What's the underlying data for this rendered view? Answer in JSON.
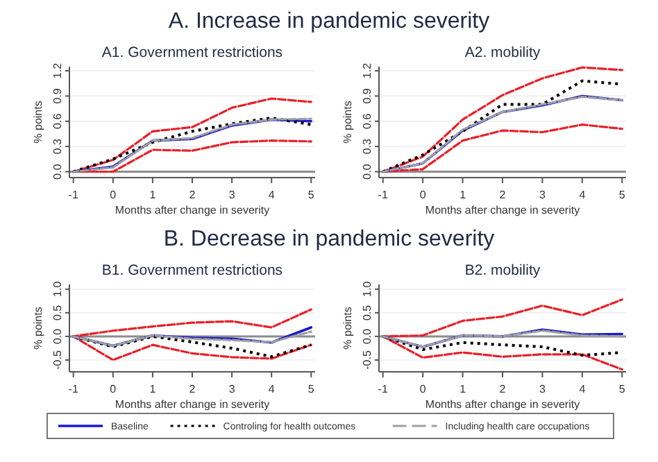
{
  "chart_data": [
    {
      "type": "line",
      "subtitle": "A1. Government restrictions",
      "xlabel": "Months after change in severity",
      "ylabel": "% points",
      "annotations": [
        "A. Increase in pandemic severity"
      ],
      "x": [
        -1,
        0,
        1,
        2,
        3,
        4,
        5
      ],
      "xlim": [
        -1.1,
        5.1
      ],
      "xticks": [
        -1,
        0,
        1,
        2,
        3,
        4,
        5
      ],
      "ylim": [
        -0.07,
        1.25
      ],
      "yticks": [
        {
          "value": 0,
          "label": "0.0"
        },
        {
          "value": 0.3,
          "label": "0.3"
        },
        {
          "value": 0.6,
          "label": "0.6"
        },
        {
          "value": 0.9,
          "label": "0.9"
        },
        {
          "value": 1.2,
          "label": "1.2"
        }
      ],
      "grid": "y",
      "ref_lines": [
        {
          "axis": "y",
          "value": 0,
          "color": "#8c8c8c"
        }
      ],
      "series": [
        {
          "color": "#e8202a",
          "line_style": "dashed",
          "values": [
            0,
            0.14,
            0.48,
            0.53,
            0.76,
            0.87,
            0.83
          ]
        },
        {
          "color": "#e8202a",
          "line_style": "dashed",
          "values": [
            0,
            0.0,
            0.26,
            0.25,
            0.35,
            0.37,
            0.36
          ]
        },
        {
          "color": "#1a1acc",
          "line_style": "solid",
          "values": [
            0,
            0.06,
            0.37,
            0.39,
            0.55,
            0.62,
            0.6
          ]
        },
        {
          "color": "#000000",
          "line_style": "dotted",
          "values": [
            0,
            0.15,
            0.35,
            0.48,
            0.57,
            0.64,
            0.56
          ]
        },
        {
          "color": "#a0a0a0",
          "line_style": "dashed",
          "values": [
            0,
            0.05,
            0.37,
            0.4,
            0.56,
            0.62,
            0.63
          ]
        }
      ]
    },
    {
      "type": "line",
      "subtitle": "A2. mobility",
      "xlabel": "Months after change in severity",
      "ylabel": "% points",
      "x": [
        -1,
        0,
        1,
        2,
        3,
        4,
        5
      ],
      "xlim": [
        -1.1,
        5.1
      ],
      "xticks": [
        -1,
        0,
        1,
        2,
        3,
        4,
        5
      ],
      "ylim": [
        -0.07,
        1.25
      ],
      "yticks": [
        {
          "value": 0,
          "label": "0.0"
        },
        {
          "value": 0.3,
          "label": "0.3"
        },
        {
          "value": 0.6,
          "label": "0.6"
        },
        {
          "value": 0.9,
          "label": "0.9"
        },
        {
          "value": 1.2,
          "label": "1.2"
        }
      ],
      "grid": "y",
      "ref_lines": [
        {
          "axis": "y",
          "value": 0,
          "color": "#8c8c8c"
        }
      ],
      "series": [
        {
          "color": "#e8202a",
          "line_style": "dashed",
          "values": [
            0,
            0.18,
            0.62,
            0.91,
            1.11,
            1.24,
            1.21
          ]
        },
        {
          "color": "#e8202a",
          "line_style": "dashed",
          "values": [
            0,
            0.03,
            0.37,
            0.49,
            0.47,
            0.56,
            0.51
          ]
        },
        {
          "color": "#1a1acc",
          "line_style": "solid",
          "values": [
            0,
            0.1,
            0.49,
            0.71,
            0.79,
            0.9,
            0.85
          ]
        },
        {
          "color": "#000000",
          "line_style": "dotted",
          "values": [
            0,
            0.2,
            0.48,
            0.8,
            0.8,
            1.08,
            1.04
          ]
        },
        {
          "color": "#a0a0a0",
          "line_style": "dashed",
          "values": [
            0,
            0.1,
            0.5,
            0.71,
            0.8,
            0.89,
            0.85
          ]
        }
      ]
    },
    {
      "type": "line",
      "subtitle": "B1. Government restrictions",
      "xlabel": "Months after change in severity",
      "ylabel": "% points",
      "annotations": [
        "B. Decrease in pandemic severity"
      ],
      "x": [
        -1,
        0,
        1,
        2,
        3,
        4,
        5
      ],
      "xlim": [
        -1.1,
        5.1
      ],
      "xticks": [
        -1,
        0,
        1,
        2,
        3,
        4,
        5
      ],
      "ylim": [
        -0.75,
        1.1
      ],
      "yticks": [
        {
          "value": -0.5,
          "label": "-0.5"
        },
        {
          "value": 0,
          "label": "0.0"
        },
        {
          "value": 0.5,
          "label": "0.5"
        },
        {
          "value": 1,
          "label": "1.0"
        }
      ],
      "grid": "y",
      "ref_lines": [
        {
          "axis": "y",
          "value": 0,
          "color": "#8c8c8c"
        }
      ],
      "series": [
        {
          "color": "#e8202a",
          "line_style": "dashed",
          "values": [
            0,
            0.12,
            0.21,
            0.29,
            0.32,
            0.19,
            0.57
          ]
        },
        {
          "color": "#e8202a",
          "line_style": "dashed",
          "values": [
            0,
            -0.5,
            -0.18,
            -0.36,
            -0.44,
            -0.47,
            -0.18
          ]
        },
        {
          "color": "#1a1acc",
          "line_style": "solid",
          "values": [
            0,
            -0.2,
            0.02,
            -0.03,
            -0.05,
            -0.13,
            0.19
          ]
        },
        {
          "color": "#000000",
          "line_style": "dotted",
          "values": [
            0,
            -0.22,
            0.0,
            -0.12,
            -0.25,
            -0.43,
            -0.18
          ]
        },
        {
          "color": "#a0a0a0",
          "line_style": "dashed",
          "values": [
            0,
            -0.2,
            0.02,
            -0.05,
            -0.08,
            -0.12,
            0.1
          ]
        }
      ]
    },
    {
      "type": "line",
      "subtitle": "B2. mobility",
      "xlabel": "Months after change in severity",
      "ylabel": "% points",
      "legend": "bottom",
      "x": [
        -1,
        0,
        1,
        2,
        3,
        4,
        5
      ],
      "xlim": [
        -1.1,
        5.1
      ],
      "xticks": [
        -1,
        0,
        1,
        2,
        3,
        4,
        5
      ],
      "ylim": [
        -0.75,
        1.1
      ],
      "yticks": [
        {
          "value": -0.5,
          "label": "-0.5"
        },
        {
          "value": 0,
          "label": "0.0"
        },
        {
          "value": 0.5,
          "label": "0.5"
        },
        {
          "value": 1,
          "label": "1.0"
        }
      ],
      "grid": "y",
      "ref_lines": [
        {
          "axis": "y",
          "value": 0,
          "color": "#8c8c8c"
        }
      ],
      "series": [
        {
          "color": "#e8202a",
          "line_style": "dashed",
          "values": [
            0,
            0.02,
            0.33,
            0.42,
            0.65,
            0.45,
            0.78
          ]
        },
        {
          "color": "#e8202a",
          "line_style": "dashed",
          "values": [
            0,
            -0.45,
            -0.34,
            -0.43,
            -0.38,
            -0.38,
            -0.7
          ]
        },
        {
          "name": "Baseline",
          "color": "#1a1acc",
          "line_style": "solid",
          "values": [
            0,
            -0.22,
            0.02,
            0.0,
            0.14,
            0.04,
            0.05
          ]
        },
        {
          "name": "Controling for health outcomes",
          "color": "#000000",
          "line_style": "dotted",
          "values": [
            0,
            -0.28,
            -0.13,
            -0.18,
            -0.22,
            -0.4,
            -0.34
          ]
        },
        {
          "name": "Including health care occupations",
          "color": "#a0a0a0",
          "line_style": "dashed",
          "values": [
            0,
            -0.22,
            0.02,
            0.0,
            0.12,
            0.02,
            0.0
          ]
        }
      ]
    }
  ]
}
